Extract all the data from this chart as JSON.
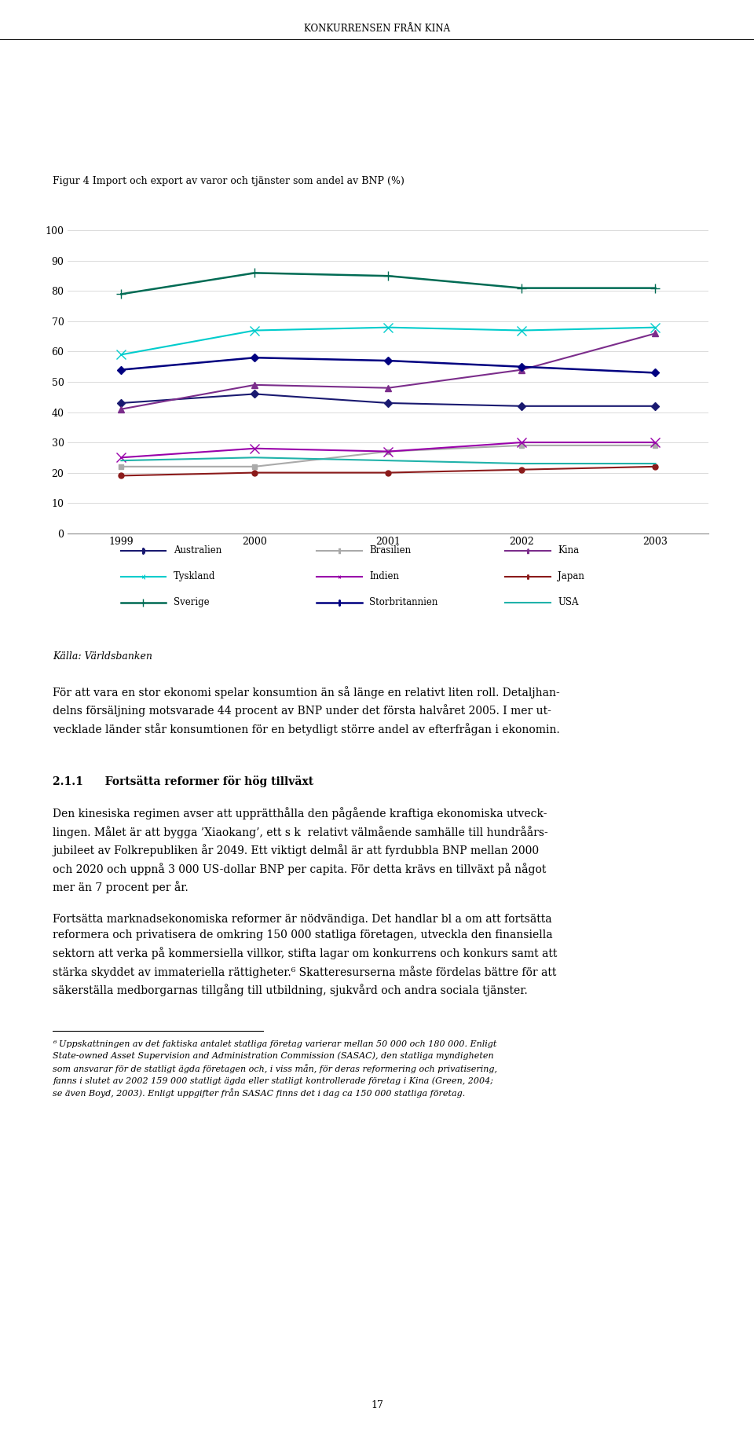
{
  "header": "KONKURRENSEN FRÅN KINA",
  "chart_title": "Figur 4 Import och export av varor och tjänster som andel av BNP (%)",
  "years": [
    1999,
    2000,
    2001,
    2002,
    2003
  ],
  "series": [
    {
      "name": "Australien",
      "values": [
        43,
        46,
        43,
        42,
        42
      ],
      "color": "#191970",
      "marker": "D",
      "ms": 5,
      "lw": 1.5,
      "legend": "Australien"
    },
    {
      "name": "Brasilien",
      "values": [
        22,
        22,
        27,
        29,
        29
      ],
      "color": "#aaaaaa",
      "marker": "s",
      "ms": 5,
      "lw": 1.5,
      "legend": "Brasilien"
    },
    {
      "name": "Kina",
      "values": [
        41,
        49,
        48,
        54,
        66
      ],
      "color": "#7B2D8B",
      "marker": "^",
      "ms": 6,
      "lw": 1.5,
      "legend": "Kina"
    },
    {
      "name": "Tyskland",
      "values": [
        59,
        67,
        68,
        67,
        68
      ],
      "color": "#00CCCC",
      "marker": "x",
      "ms": 8,
      "lw": 1.5,
      "legend": "Tyskland"
    },
    {
      "name": "Indien",
      "values": [
        25,
        28,
        27,
        30,
        30
      ],
      "color": "#9900AA",
      "marker": "x",
      "ms": 8,
      "lw": 1.5,
      "legend": "Indien"
    },
    {
      "name": "Japan",
      "values": [
        19,
        20,
        20,
        21,
        22
      ],
      "color": "#8B1A1A",
      "marker": "o",
      "ms": 5,
      "lw": 1.5,
      "legend": "Japan"
    },
    {
      "name": "Sverige",
      "values": [
        79,
        86,
        85,
        81,
        81
      ],
      "color": "#006B54",
      "marker": "+",
      "ms": 9,
      "lw": 1.8,
      "legend": "Sverige"
    },
    {
      "name": "Storbritannien",
      "values": [
        54,
        58,
        57,
        55,
        53
      ],
      "color": "#000080",
      "marker": "D",
      "ms": 5,
      "lw": 1.8,
      "legend": "Storbritannien"
    },
    {
      "name": "USA",
      "values": [
        24,
        25,
        24,
        23,
        23
      ],
      "color": "#20B2AA",
      "marker": "None",
      "ms": 5,
      "lw": 1.5,
      "legend": "USA"
    }
  ],
  "ylim": [
    0,
    100
  ],
  "yticks": [
    0,
    10,
    20,
    30,
    40,
    50,
    60,
    70,
    80,
    90,
    100
  ],
  "source_text": "Källa: Världsbanken",
  "body_text1": "För att vara en stor ekonomi spelar konsumtion än så länge en relativt liten roll. Detaljhan-\ndelns försäljning motsvarade 44 procent av BNP under det första halvåret 2005. I mer ut-\nvecklade länder står konsumtionen för en betydligt större andel av efterfrågan i ekonomin.",
  "section_heading": "2.1.1  Fortsätta reformer för hög tillväxt",
  "body_text2": "Den kinesiska regimen avser att upprätthålla den pågående kraftiga ekonomiska utveck-\nlingen. Målet är att bygga ’Xiaokang’, ett s k  relativt välmående samhälle till hundråårs-\njubileet av Folkrepubliken år 2049. Ett viktigt delmål är att fyrdubbla BNP mellan 2000\noch 2020 och uppnå 3 000 US-dollar BNP per capita. För detta krävs en tillväxt på något\nmer än 7 procent per år.",
  "body_text3": "Fortsätta marknadsekonomiska reformer är nödvändiga. Det handlar bl a om att fortsätta\nreformera och privatisera de omkring 150 000 statliga företagen, utveckla den finansiella\nsektorn att verka på kommersiella villkor, stifta lagar om konkurrens och konkurs samt att\nstärka skyddet av immateriella rättigheter.⁶ Skatteresurserna måste fördelas bättre för att\nsäkerställa medborgarnas tillgång till utbildning, sjukvård och andra sociala tjänster.",
  "footnote_text": "⁶ Uppskattningen av det faktiska antalet statliga företag varierar mellan 50 000 och 180 000. Enligt\nState-owned Asset Supervision and Administration Commission (SASAC), den statliga myndigheten\nsom ansvarar för de statligt ägda företagen och, i viss mån, för deras reformering och privatisering,\nfanns i slutet av 2002 159 000 statligt ägda eller statligt kontrollerade företag i Kina (Green, 2004;\nse även Boyd, 2003). Enligt uppgifter från SASAC finns det i dag ca 150 000 statliga företag.",
  "page_number": "17"
}
